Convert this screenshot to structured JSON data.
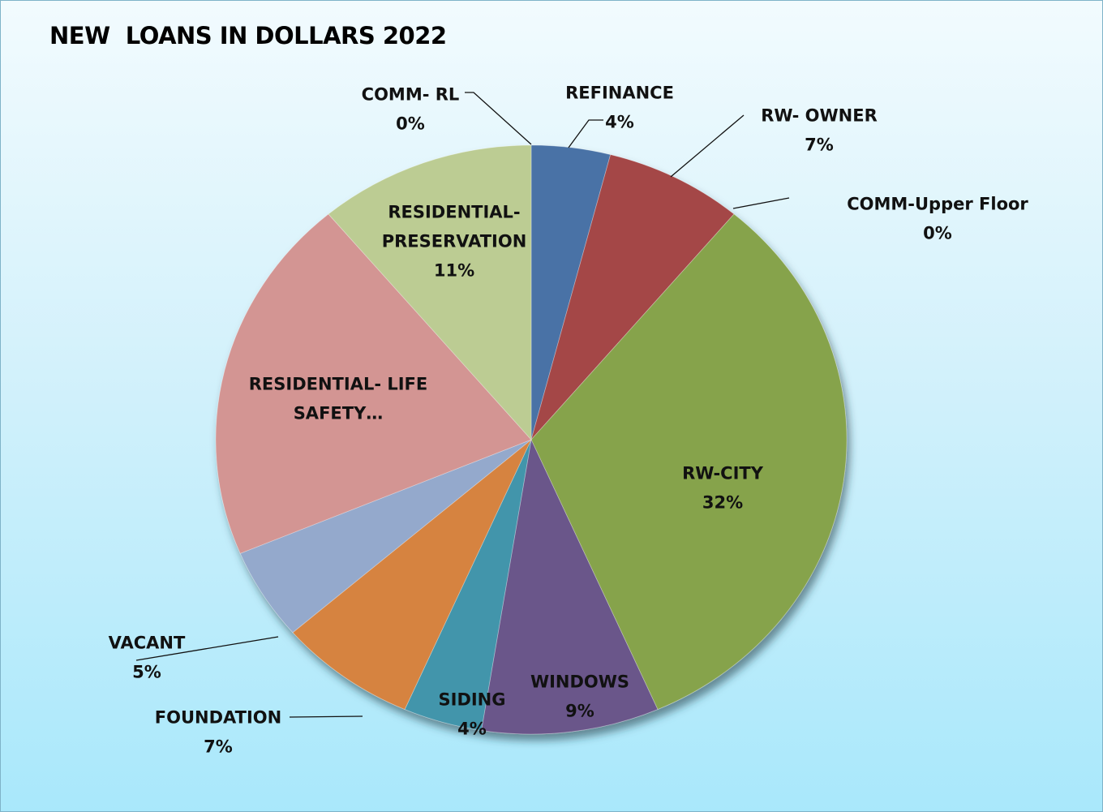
{
  "chart_data": {
    "type": "pie",
    "title": "NEW  LOANS IN DOLLARS 2022",
    "slices": [
      {
        "label": [
          "REFINANCE"
        ],
        "value": 4,
        "pct": "4%",
        "color": "#4a72a6"
      },
      {
        "label": [
          "RW- OWNER"
        ],
        "value": 7,
        "pct": "7%",
        "color": "#a44646"
      },
      {
        "label": [
          "COMM-Upper Floor"
        ],
        "value": 0,
        "pct": "0%",
        "color": "#8aa84c"
      },
      {
        "label": [
          "RW-CITY"
        ],
        "value": 32,
        "pct": "32%",
        "color": "#86a34b"
      },
      {
        "label": [
          "WINDOWS"
        ],
        "value": 9,
        "pct": "9%",
        "color": "#6b568a"
      },
      {
        "label": [
          "SIDING"
        ],
        "value": 4,
        "pct": "4%",
        "color": "#4395ab"
      },
      {
        "label": [
          "FOUNDATION"
        ],
        "value": 7,
        "pct": "7%",
        "color": "#d6833f"
      },
      {
        "label": [
          "VACANT"
        ],
        "value": 5,
        "pct": "5%",
        "color": "#94a9cc"
      },
      {
        "label": [
          "RESIDENTIAL- LIFE",
          "SAFETY…"
        ],
        "value": 20,
        "pct": "",
        "color": "#d39593"
      },
      {
        "label": [
          "RESIDENTIAL-",
          "PRESERVATION"
        ],
        "value": 11,
        "pct": "11%",
        "color": "#bccc93"
      },
      {
        "label": [
          "COMM- RL"
        ],
        "value": 0,
        "pct": "0%",
        "color": "#4a72a6"
      }
    ]
  }
}
